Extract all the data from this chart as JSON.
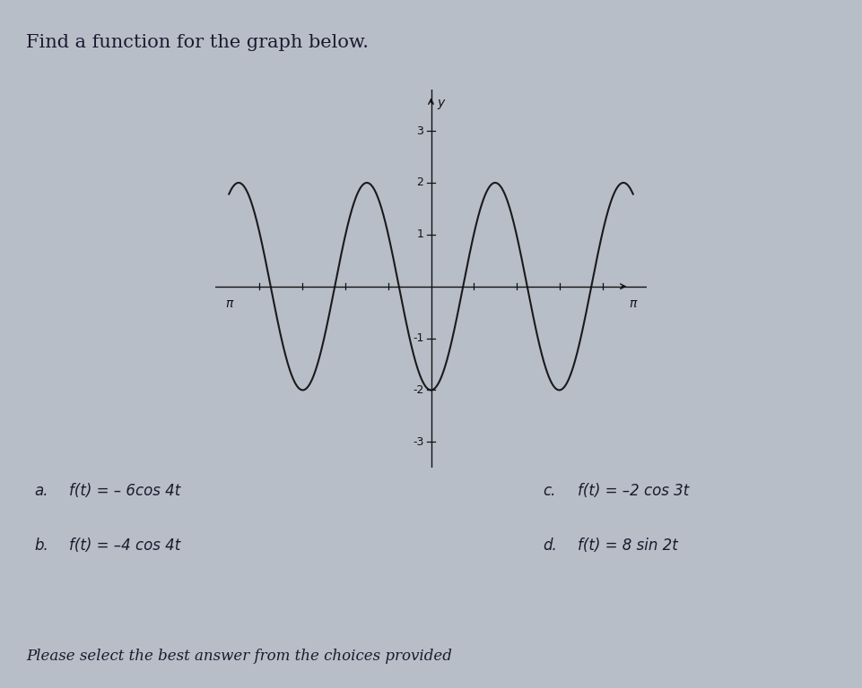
{
  "title": "Find a function for the graph below.",
  "title_fontsize": 15,
  "title_fontweight": "normal",
  "background_color": "#b8bec8",
  "card_color": "#c8cdd8",
  "plot_bg_color": "#c8cdd8",
  "curve_color": "#1a1a1a",
  "curve_linewidth": 1.5,
  "amplitude": -2,
  "frequency": 3,
  "x_min": -3.14159,
  "x_max": 3.14159,
  "y_min": -3.5,
  "y_max": 3.8,
  "y_ticks": [
    -3,
    -2,
    -1,
    1,
    2,
    3
  ],
  "x_tick_positions": [
    -2.8,
    -2.1,
    -1.4,
    -0.7,
    0.7,
    1.4,
    2.1,
    2.8
  ],
  "axis_color": "#111111",
  "tick_fontsize": 9,
  "choice_a": "f(t) = – 6cos 4t",
  "choice_b": "f(t) = –4 cos 4t",
  "choice_c": "f(t) = –2 cos 3t",
  "choice_d": "f(t) = 8 sin 2t",
  "choice_fontsize": 12,
  "footer_text": "Please select the best answer from the choices provided",
  "footer_fontsize": 12,
  "text_color": "#1a1a2e"
}
